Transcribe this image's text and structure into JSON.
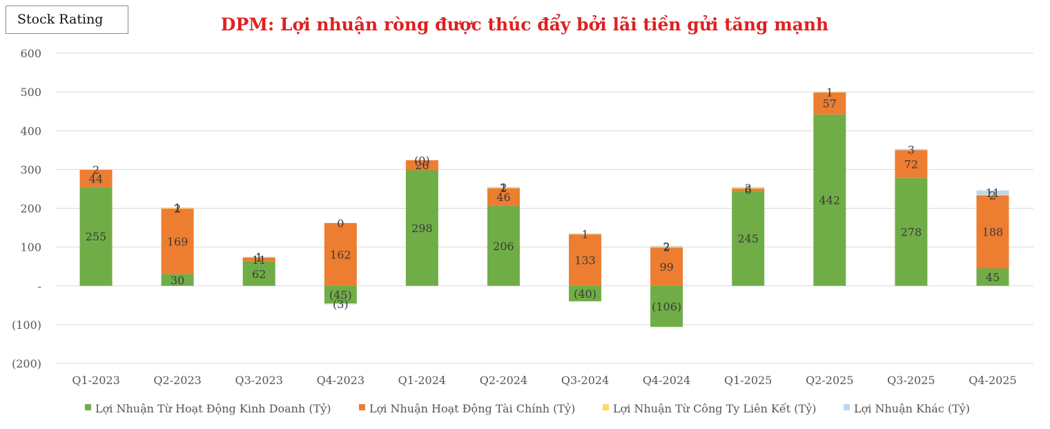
{
  "badge": {
    "label": "Stock Rating"
  },
  "chart_data": {
    "type": "bar",
    "stacked": true,
    "title": "DPM: Lợi nhuận ròng được thúc đẩy bởi lãi tiền gửi tăng mạnh",
    "xlabel": "",
    "ylabel": "",
    "ylim": [
      -200,
      600
    ],
    "yticks": [
      -200,
      -100,
      0,
      100,
      200,
      300,
      400,
      500,
      600
    ],
    "ytick_labels": [
      "(200)",
      "(100)",
      "-",
      "100",
      "200",
      "300",
      "400",
      "500",
      "600"
    ],
    "grid": true,
    "legend_position": "bottom",
    "categories": [
      "Q1-2023",
      "Q2-2023",
      "Q3-2023",
      "Q4-2023",
      "Q1-2024",
      "Q2-2024",
      "Q3-2024",
      "Q4-2024",
      "Q1-2025",
      "Q2-2025",
      "Q3-2025",
      "Q4-2025"
    ],
    "series": [
      {
        "name": "Lợi Nhuận Từ Hoạt Động Kinh Doanh (Tỷ)",
        "color": "#70ad47",
        "values": [
          255,
          30,
          62,
          -45,
          298,
          206,
          -40,
          -106,
          245,
          442,
          278,
          45
        ],
        "labels": [
          "255",
          "30",
          "62",
          "(45)",
          "298",
          "206",
          "(40)",
          "(106)",
          "245",
          "442",
          "278",
          "45"
        ]
      },
      {
        "name": "Lợi Nhuận Hoạt Động Tài Chính (Tỷ)",
        "color": "#ed7d31",
        "values": [
          44,
          169,
          11,
          162,
          26,
          46,
          133,
          99,
          6,
          57,
          72,
          188
        ],
        "labels": [
          "44",
          "169",
          "11",
          "162",
          "26",
          "46",
          "133",
          "99",
          "6",
          "57",
          "72",
          "188"
        ]
      },
      {
        "name": "Lợi Nhuận Từ Công Ty Liên Kết (Tỷ)",
        "color": "#ffd966",
        "values": [
          0,
          2,
          1,
          0,
          0,
          1,
          1,
          2,
          3,
          1,
          0,
          2
        ],
        "labels": [
          "",
          "2",
          "1",
          "0",
          "",
          "1",
          "1",
          "2",
          "3",
          "1",
          "",
          "2"
        ]
      },
      {
        "name": "Lợi Nhuận Khác (Tỷ)",
        "color": "#bdd7ee",
        "values": [
          2,
          1,
          1,
          -3,
          0,
          2,
          1,
          2,
          1,
          1,
          3,
          11
        ],
        "labels": [
          "2",
          "1",
          "1",
          "(3)",
          "(0)",
          "2",
          "",
          "2",
          "",
          "",
          "3",
          "11"
        ]
      }
    ]
  }
}
